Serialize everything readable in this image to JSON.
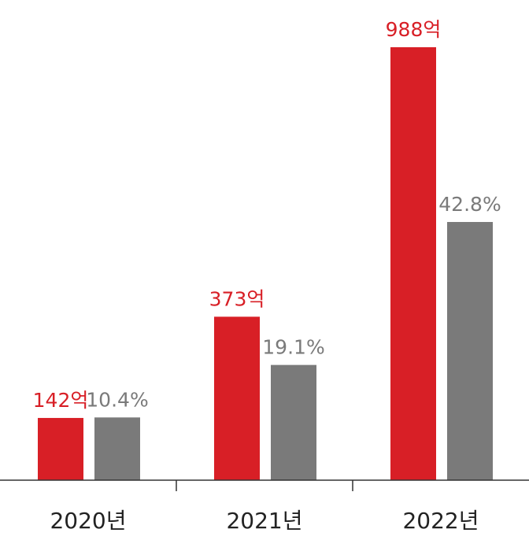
{
  "chart_data": {
    "type": "bar",
    "categories": [
      "2020년",
      "2021년",
      "2022년"
    ],
    "series": [
      {
        "values": [
          142,
          373,
          988
        ],
        "labels": [
          "142억",
          "373억",
          "988억"
        ],
        "color": "#d81f26"
      },
      {
        "values": [
          10.4,
          19.1,
          42.8
        ],
        "labels": [
          "10.4%",
          "19.1%",
          "42.8%"
        ],
        "color": "#7a7a7a"
      }
    ],
    "title": "",
    "xlabel": "",
    "ylabel": "",
    "grid": false,
    "legend": "none"
  }
}
